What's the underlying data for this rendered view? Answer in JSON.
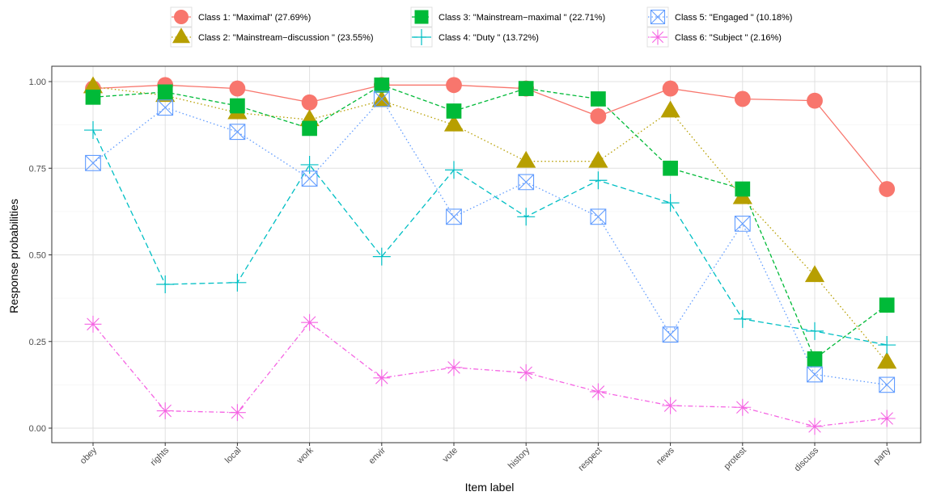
{
  "chart_data": {
    "type": "line",
    "title": "",
    "xlabel": "Item label",
    "ylabel": "Response probabilities",
    "ylim": [
      0,
      1
    ],
    "yticks": [
      "0.00",
      "0.25",
      "0.50",
      "0.75",
      "1.00"
    ],
    "categories": [
      "obey",
      "rights",
      "local",
      "work",
      "envir",
      "vote",
      "history",
      "respect",
      "news",
      "protest",
      "discuss",
      "party"
    ],
    "grid": true,
    "legend_position": "top",
    "series": [
      {
        "name": "Class 1: \"Maximal\" (27.69%)",
        "color": "#F8766D",
        "marker": "circle",
        "line": "solid",
        "values": [
          0.98,
          0.99,
          0.98,
          0.94,
          0.99,
          0.99,
          0.98,
          0.9,
          0.98,
          0.95,
          0.945,
          0.69
        ]
      },
      {
        "name": "Class 2: \"Mainstream−discussion \" (23.55%)",
        "color": "#B79F00",
        "marker": "triangle",
        "line": "dotted",
        "values": [
          0.985,
          0.96,
          0.91,
          0.89,
          0.945,
          0.875,
          0.77,
          0.77,
          0.915,
          0.665,
          0.44,
          0.19
        ]
      },
      {
        "name": "Class 3: \"Mainstream−maximal \" (22.71%)",
        "color": "#00BA38",
        "marker": "square",
        "line": "dashed",
        "values": [
          0.955,
          0.97,
          0.93,
          0.865,
          0.99,
          0.915,
          0.98,
          0.95,
          0.75,
          0.69,
          0.2,
          0.355
        ]
      },
      {
        "name": "Class 4: \"Duty \" (13.72%)",
        "color": "#00BFC4",
        "marker": "plus",
        "line": "longdash",
        "values": [
          0.86,
          0.415,
          0.42,
          0.76,
          0.495,
          0.745,
          0.61,
          0.715,
          0.65,
          0.315,
          0.28,
          0.24
        ]
      },
      {
        "name": "Class 5: \"Engaged \" (10.18%)",
        "color": "#619CFF",
        "marker": "boxx",
        "line": "dotted",
        "values": [
          0.765,
          0.925,
          0.855,
          0.72,
          0.95,
          0.61,
          0.71,
          0.61,
          0.27,
          0.59,
          0.155,
          0.125
        ]
      },
      {
        "name": "Class 6: \"Subject \" (2.16%)",
        "color": "#F564E3",
        "marker": "asterisk",
        "line": "dotdash",
        "values": [
          0.3,
          0.05,
          0.045,
          0.305,
          0.145,
          0.175,
          0.16,
          0.105,
          0.065,
          0.06,
          0.005,
          0.028
        ]
      }
    ]
  }
}
